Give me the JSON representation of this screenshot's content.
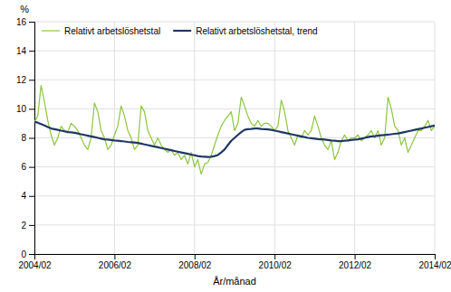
{
  "chart_data": {
    "type": "line",
    "xlabel": "År/månad",
    "ylabel": "%",
    "categories": [
      "2004/02",
      null,
      null,
      null,
      null,
      null,
      null,
      null,
      null,
      null,
      null,
      null,
      null,
      null,
      null,
      null,
      null,
      null,
      null,
      null,
      null,
      null,
      null,
      null,
      "2006/02",
      null,
      null,
      null,
      null,
      null,
      null,
      null,
      null,
      null,
      null,
      null,
      null,
      null,
      null,
      null,
      null,
      null,
      null,
      null,
      null,
      null,
      null,
      null,
      "2008/02",
      null,
      null,
      null,
      null,
      null,
      null,
      null,
      null,
      null,
      null,
      null,
      null,
      null,
      null,
      null,
      null,
      null,
      null,
      null,
      null,
      null,
      null,
      null,
      "2010/02",
      null,
      null,
      null,
      null,
      null,
      null,
      null,
      null,
      null,
      null,
      null,
      null,
      null,
      null,
      null,
      null,
      null,
      null,
      null,
      null,
      null,
      null,
      null,
      "2012/02",
      null,
      null,
      null,
      null,
      null,
      null,
      null,
      null,
      null,
      null,
      null,
      null,
      null,
      null,
      null,
      null,
      null,
      null,
      null,
      null,
      null,
      null,
      null,
      "2014/02"
    ],
    "series": [
      {
        "name": "Relativt arbetslöshetstal",
        "color": "#8DC63F",
        "values": [
          9.1,
          9.5,
          11.6,
          10.5,
          9.2,
          8.2,
          7.5,
          8.0,
          8.8,
          8.5,
          8.4,
          9.0,
          8.8,
          8.5,
          8.0,
          7.5,
          7.2,
          8.0,
          10.4,
          9.8,
          8.5,
          8.0,
          7.2,
          7.5,
          8.2,
          8.8,
          10.2,
          9.5,
          8.5,
          8.0,
          7.2,
          7.5,
          10.2,
          9.8,
          8.5,
          8.0,
          7.5,
          8.0,
          7.5,
          7.2,
          7.0,
          7.2,
          6.8,
          7.0,
          6.5,
          6.8,
          6.2,
          7.0,
          6.0,
          6.5,
          5.5,
          6.2,
          6.3,
          6.8,
          7.5,
          8.2,
          8.8,
          9.2,
          9.5,
          9.8,
          8.5,
          9.0,
          10.8,
          10.2,
          9.5,
          9.0,
          8.8,
          9.2,
          8.8,
          9.0,
          9.0,
          8.8,
          8.5,
          8.8,
          10.6,
          9.8,
          8.5,
          8.0,
          7.5,
          8.2,
          8.0,
          8.5,
          8.2,
          8.5,
          9.5,
          8.8,
          8.0,
          7.5,
          7.2,
          7.8,
          6.5,
          7.0,
          7.8,
          8.2,
          7.8,
          8.0,
          8.0,
          8.2,
          7.8,
          8.0,
          8.2,
          8.5,
          8.0,
          8.5,
          7.5,
          8.0,
          10.8,
          10.0,
          8.8,
          8.5,
          7.5,
          8.0,
          7.0,
          7.5,
          8.0,
          8.5,
          8.5,
          8.8,
          9.2,
          8.5,
          8.8
        ]
      },
      {
        "name": "Relativt arbetslöshetstal, trend",
        "color": "#1F3864",
        "values": [
          9.1,
          9.05,
          8.95,
          8.85,
          8.75,
          8.65,
          8.6,
          8.55,
          8.5,
          8.45,
          8.4,
          8.38,
          8.35,
          8.3,
          8.25,
          8.2,
          8.15,
          8.1,
          8.05,
          8.0,
          7.95,
          7.9,
          7.88,
          7.85,
          7.82,
          7.8,
          7.78,
          7.75,
          7.72,
          7.7,
          7.68,
          7.65,
          7.6,
          7.55,
          7.5,
          7.45,
          7.4,
          7.35,
          7.3,
          7.25,
          7.2,
          7.15,
          7.1,
          7.05,
          7.0,
          6.95,
          6.9,
          6.85,
          6.8,
          6.75,
          6.72,
          6.7,
          6.68,
          6.7,
          6.75,
          6.82,
          7.0,
          7.2,
          7.5,
          7.8,
          8.0,
          8.2,
          8.4,
          8.55,
          8.6,
          8.62,
          8.65,
          8.65,
          8.62,
          8.6,
          8.58,
          8.55,
          8.5,
          8.45,
          8.4,
          8.35,
          8.3,
          8.25,
          8.2,
          8.15,
          8.1,
          8.05,
          8.0,
          7.98,
          7.95,
          7.92,
          7.9,
          7.88,
          7.85,
          7.82,
          7.8,
          7.78,
          7.78,
          7.8,
          7.82,
          7.85,
          7.88,
          7.9,
          7.95,
          8.0,
          8.05,
          8.1,
          8.12,
          8.15,
          8.18,
          8.2,
          8.22,
          8.25,
          8.28,
          8.3,
          8.35,
          8.4,
          8.45,
          8.5,
          8.55,
          8.6,
          8.65,
          8.7,
          8.75,
          8.8,
          8.85
        ]
      }
    ],
    "ylim": [
      0,
      16
    ],
    "yticks": [
      0,
      2,
      4,
      6,
      8,
      10,
      12,
      14,
      16
    ],
    "grid": true,
    "legend": "top-left"
  }
}
